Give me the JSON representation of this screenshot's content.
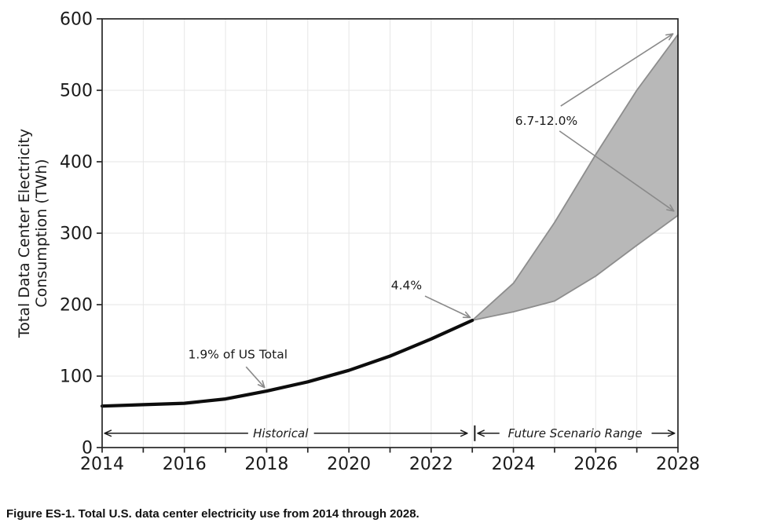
{
  "figure": {
    "caption": "Figure ES-1. Total U.S. data center electricity use from 2014 through 2028."
  },
  "chart_data": {
    "type": "area",
    "title": "",
    "ylabel_line1": "Total Data Center Electricity",
    "ylabel_line2": "Consumption (TWh)",
    "xlabel": "",
    "xlim": [
      2014,
      2028
    ],
    "ylim": [
      0,
      600
    ],
    "x_tick_years_all": [
      2014,
      2015,
      2016,
      2017,
      2018,
      2019,
      2020,
      2021,
      2022,
      2023,
      2024,
      2025,
      2026,
      2027,
      2028
    ],
    "x_tick_labels": [
      2014,
      2016,
      2018,
      2020,
      2022,
      2024,
      2026,
      2028
    ],
    "y_ticks": [
      0,
      100,
      200,
      300,
      400,
      500,
      600
    ],
    "grid": true,
    "legend_position": "none",
    "series": [
      {
        "name": "Historical",
        "kind": "line",
        "x": [
          2014,
          2015,
          2016,
          2017,
          2018,
          2019,
          2020,
          2021,
          2022,
          2023
        ],
        "y": [
          58,
          60,
          62,
          68,
          79,
          92,
          108,
          128,
          152,
          178
        ]
      },
      {
        "name": "Future Scenario Range",
        "kind": "band",
        "x": [
          2023,
          2024,
          2025,
          2026,
          2027,
          2028
        ],
        "y_lower": [
          178,
          190,
          205,
          240,
          283,
          325
        ],
        "y_upper": [
          178,
          230,
          315,
          410,
          500,
          578
        ]
      }
    ],
    "annotations": [
      {
        "id": "share-2018",
        "text": "1.9% of US Total",
        "tx": 2017.3,
        "ty": 130,
        "arrows": [
          [
            2017.5,
            113,
            2017.95,
            84
          ]
        ]
      },
      {
        "id": "share-2023",
        "text": "4.4%",
        "tx": 2021.4,
        "ty": 227,
        "arrows": [
          [
            2021.85,
            212,
            2022.95,
            182
          ]
        ]
      },
      {
        "id": "share-2028",
        "text": "6.7-12.0%",
        "tx": 2024.8,
        "ty": 457,
        "arrows": [
          [
            2025.15,
            478,
            2027.88,
            579
          ],
          [
            2025.12,
            443,
            2027.9,
            331
          ]
        ]
      }
    ],
    "range_markers": {
      "y": 20,
      "historical": {
        "label": "Historical",
        "left_tip": 2014.06,
        "text_center": 2018.34,
        "gap_start": 2017.55,
        "gap_end": 2019.15,
        "right_tip": 2022.88
      },
      "divider": {
        "x": 2023.06,
        "y_top": 31,
        "y_bottom": 9
      },
      "future": {
        "label": "Future Scenario Range",
        "left_tip": 2023.13,
        "text_center": 2025.5,
        "gap_start": 2023.66,
        "gap_end": 2027.36,
        "right_tip": 2027.92
      }
    },
    "colors": {
      "historical_line": "#0d0d0d",
      "band_fill": "#b8b8b8",
      "band_edge": "#8d8d8d",
      "annotation_arrow": "#8a8a8a",
      "annotation_text": "#333333",
      "axis": "#262626",
      "tick_label": "#1a1a1a",
      "grid": "#e6e6e6",
      "range_marker": "#1a1a1a",
      "background": "#ffffff"
    }
  }
}
